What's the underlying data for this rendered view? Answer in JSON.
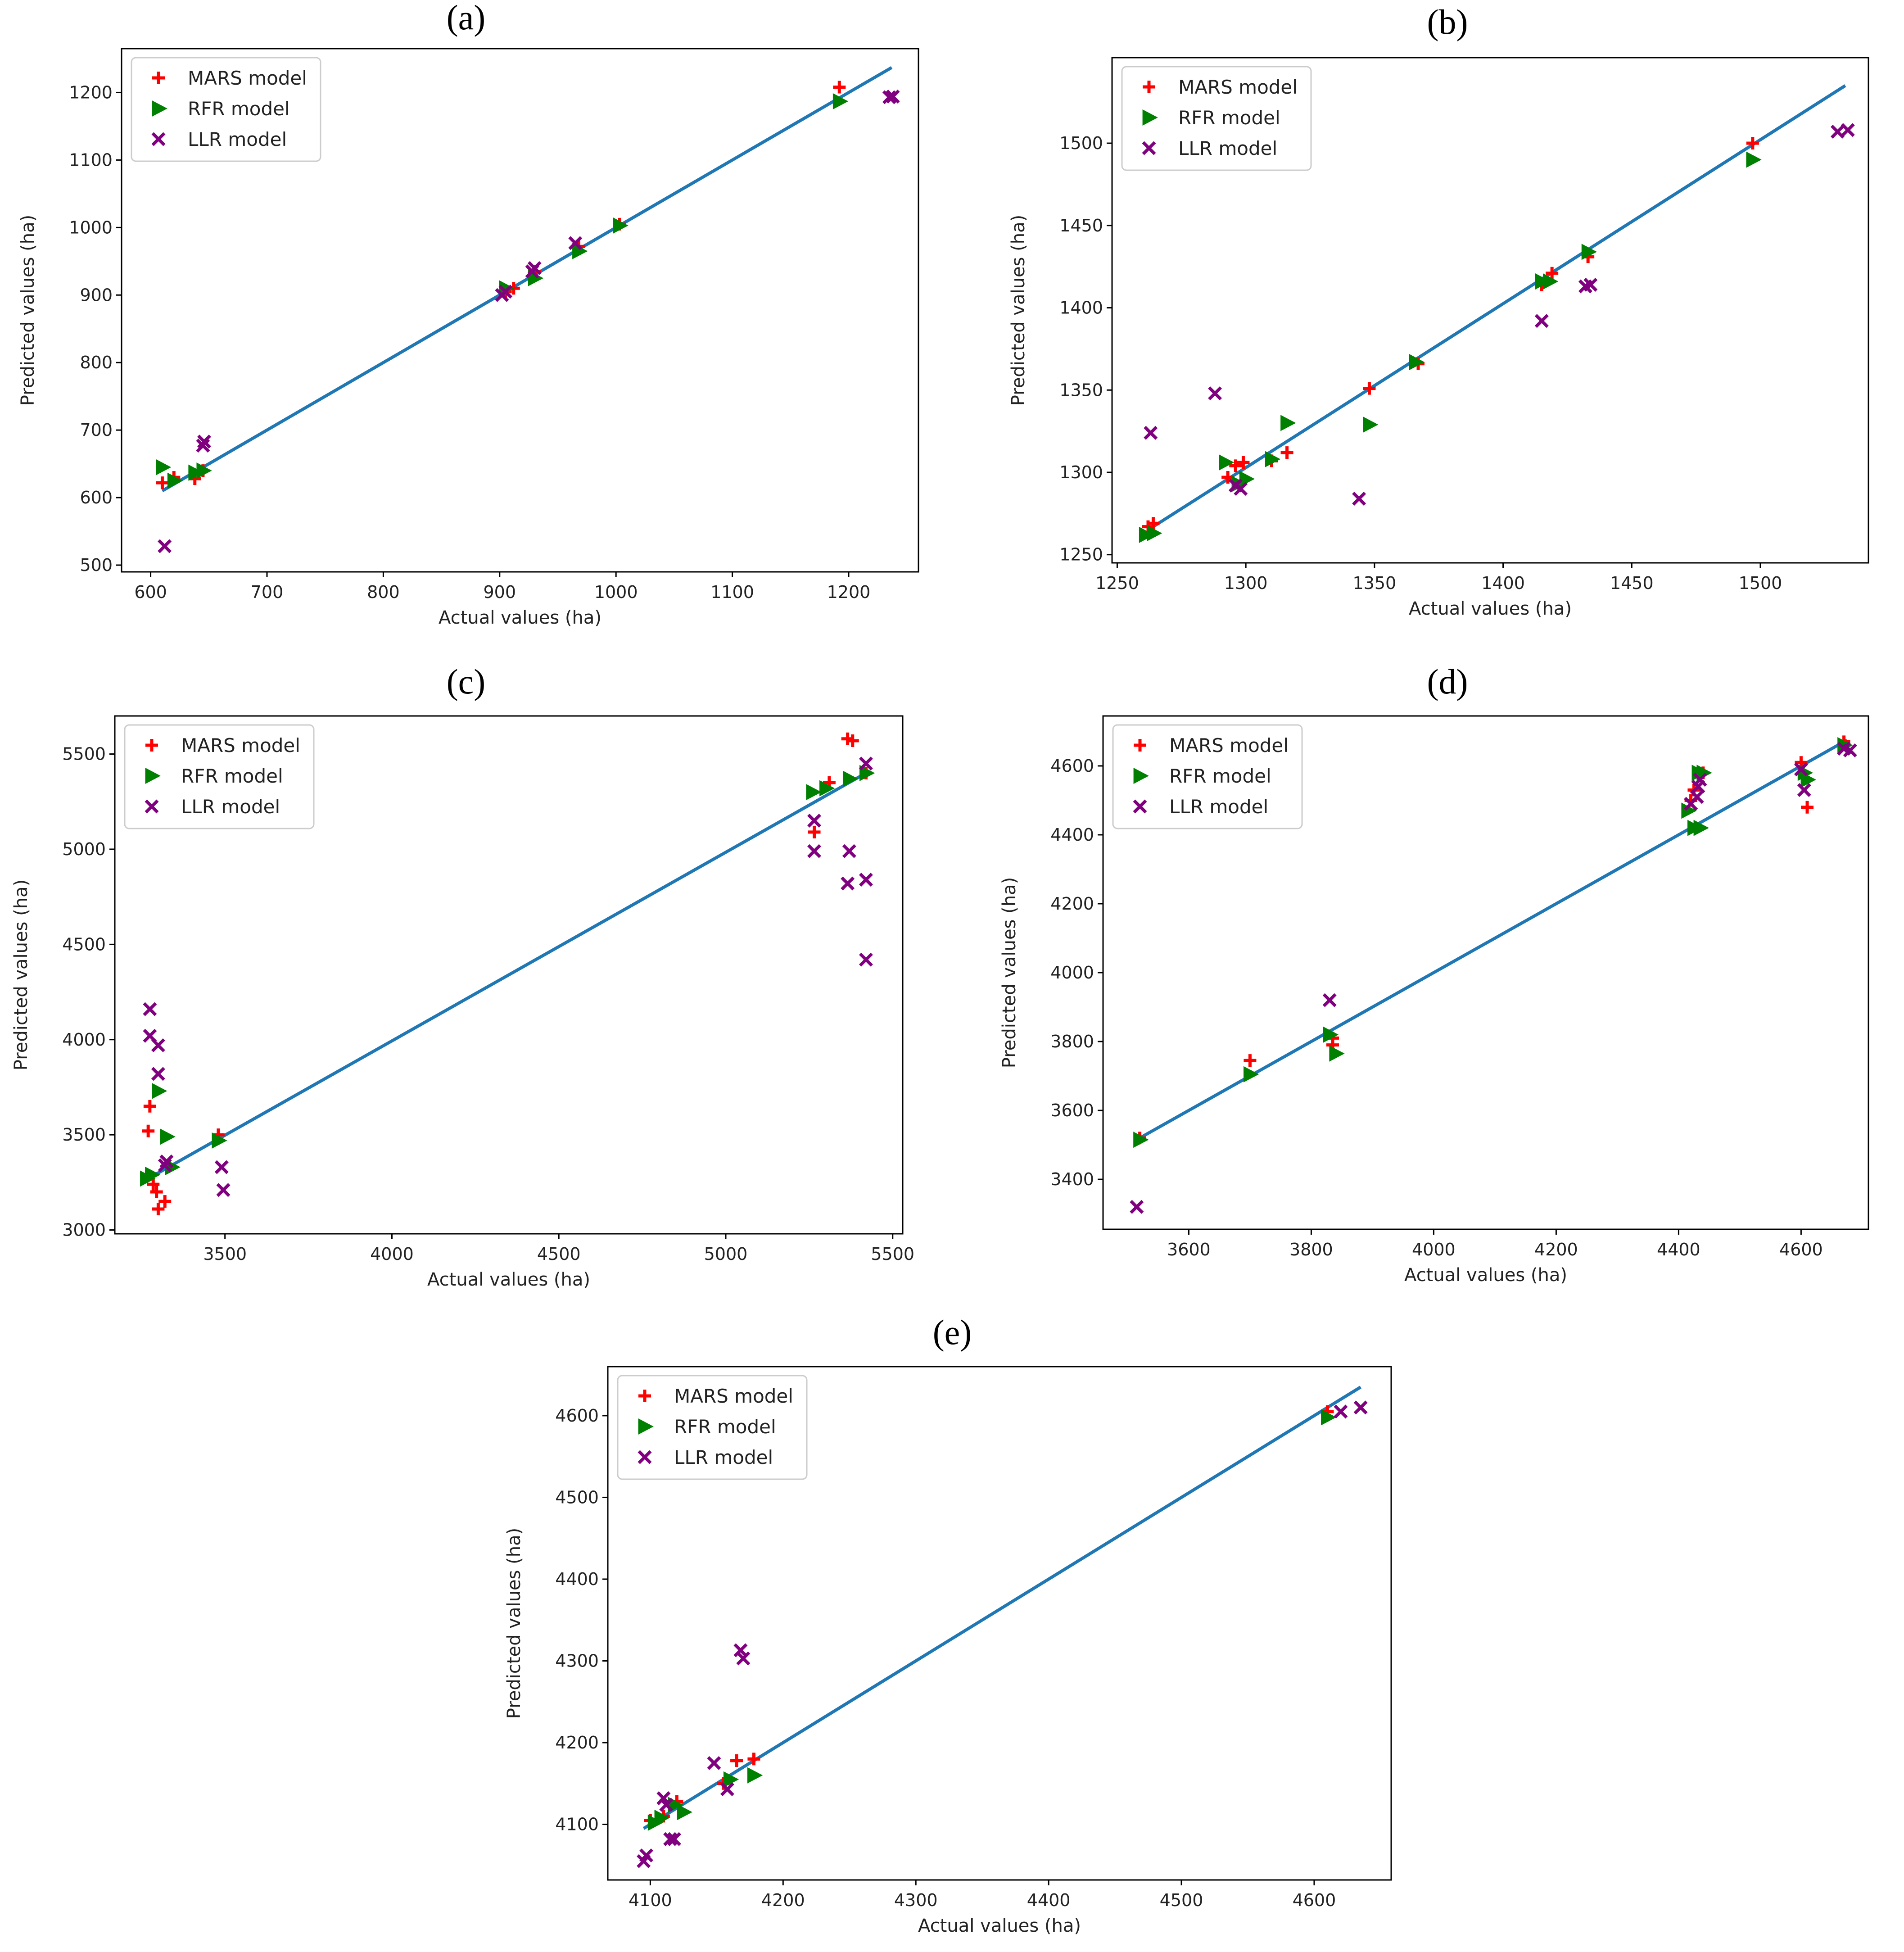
{
  "figure": {
    "panel_count": 5
  },
  "colors": {
    "mars": "#ff0000",
    "rfr": "#008000",
    "llr": "#800080",
    "fit_line": "#1f77b4",
    "axes": "#000000"
  },
  "chart_data": [
    {
      "panel": "(a)",
      "type": "scatter",
      "xlabel": "Actual values (ha)",
      "ylabel": "Predicted values (ha)",
      "xlim": [
        575,
        1260
      ],
      "ylim": [
        490,
        1265
      ],
      "xticks": [
        600,
        700,
        800,
        900,
        1000,
        1100,
        1200
      ],
      "yticks": [
        500,
        600,
        700,
        800,
        900,
        1000,
        1100,
        1200
      ],
      "legend_position": "top-left",
      "fit_line": [
        [
          610,
          610
        ],
        [
          1237,
          1237
        ]
      ],
      "series": [
        {
          "name": "MARS model",
          "marker": "plus",
          "color": "#ff0000",
          "points": [
            [
              610,
              622
            ],
            [
              620,
              630
            ],
            [
              638,
              628
            ],
            [
              645,
              640
            ],
            [
              905,
              905
            ],
            [
              912,
              910
            ],
            [
              930,
              935
            ],
            [
              968,
              972
            ],
            [
              1003,
              1005
            ],
            [
              1192,
              1208
            ]
          ]
        },
        {
          "name": "RFR model",
          "marker": "triangle-right",
          "color": "#008000",
          "points": [
            [
              610,
              645
            ],
            [
              620,
              625
            ],
            [
              638,
              637
            ],
            [
              645,
              640
            ],
            [
              905,
              910
            ],
            [
              930,
              925
            ],
            [
              968,
              965
            ],
            [
              1003,
              1003
            ],
            [
              1192,
              1187
            ]
          ]
        },
        {
          "name": "LLR model",
          "marker": "x",
          "color": "#800080",
          "points": [
            [
              612,
              528
            ],
            [
              645,
              677
            ],
            [
              646,
              683
            ],
            [
              902,
              900
            ],
            [
              905,
              905
            ],
            [
              928,
              935
            ],
            [
              930,
              940
            ],
            [
              965,
              977
            ],
            [
              1235,
              1193
            ],
            [
              1238,
              1194
            ]
          ]
        }
      ]
    },
    {
      "panel": "(b)",
      "type": "scatter",
      "xlabel": "Actual values (ha)",
      "ylabel": "Predicted values (ha)",
      "xlim": [
        1248,
        1542
      ],
      "ylim": [
        1245,
        1552
      ],
      "xticks": [
        1250,
        1300,
        1350,
        1400,
        1450,
        1500
      ],
      "yticks": [
        1250,
        1300,
        1350,
        1400,
        1450,
        1500
      ],
      "legend_position": "top-left",
      "fit_line": [
        [
          1262,
          1265
        ],
        [
          1533,
          1535
        ]
      ],
      "series": [
        {
          "name": "MARS model",
          "marker": "plus",
          "color": "#ff0000",
          "points": [
            [
              1262,
              1267
            ],
            [
              1264,
              1269
            ],
            [
              1293,
              1297
            ],
            [
              1296,
              1304
            ],
            [
              1299,
              1306
            ],
            [
              1310,
              1307
            ],
            [
              1316,
              1312
            ],
            [
              1348,
              1351
            ],
            [
              1367,
              1366
            ],
            [
              1415,
              1414
            ],
            [
              1419,
              1421
            ],
            [
              1433,
              1431
            ],
            [
              1497,
              1500
            ]
          ]
        },
        {
          "name": "RFR model",
          "marker": "triangle-right",
          "color": "#008000",
          "points": [
            [
              1261,
              1262
            ],
            [
              1264,
              1263
            ],
            [
              1292,
              1306
            ],
            [
              1297,
              1293
            ],
            [
              1300,
              1296
            ],
            [
              1310,
              1308
            ],
            [
              1316,
              1330
            ],
            [
              1348,
              1329
            ],
            [
              1366,
              1367
            ],
            [
              1415,
              1416
            ],
            [
              1418,
              1416
            ],
            [
              1433,
              1434
            ],
            [
              1497,
              1490
            ]
          ]
        },
        {
          "name": "LLR model",
          "marker": "x",
          "color": "#800080",
          "points": [
            [
              1263,
              1324
            ],
            [
              1288,
              1348
            ],
            [
              1296,
              1292
            ],
            [
              1298,
              1290
            ],
            [
              1344,
              1284
            ],
            [
              1415,
              1392
            ],
            [
              1432,
              1413
            ],
            [
              1434,
              1414
            ],
            [
              1530,
              1507
            ],
            [
              1534,
              1508
            ]
          ]
        }
      ]
    },
    {
      "panel": "(c)",
      "type": "scatter",
      "xlabel": "Actual values (ha)",
      "ylabel": "Predicted values (ha)",
      "xlim": [
        3170,
        5530
      ],
      "ylim": [
        2980,
        5700
      ],
      "xticks": [
        3500,
        4000,
        4500,
        5000,
        5500
      ],
      "yticks": [
        3000,
        3500,
        4000,
        4500,
        5000,
        5500
      ],
      "legend_position": "top-left",
      "fit_line": [
        [
          3265,
          3265
        ],
        [
          5430,
          5410
        ]
      ],
      "series": [
        {
          "name": "MARS model",
          "marker": "plus",
          "color": "#ff0000",
          "points": [
            [
              3270,
              3520
            ],
            [
              3275,
              3650
            ],
            [
              3285,
              3240
            ],
            [
              3295,
              3200
            ],
            [
              3300,
              3110
            ],
            [
              3320,
              3150
            ],
            [
              3480,
              3500
            ],
            [
              3265,
              3280
            ],
            [
              5265,
              5090
            ],
            [
              5310,
              5350
            ],
            [
              5365,
              5580
            ],
            [
              5380,
              5570
            ],
            [
              5420,
              5400
            ]
          ]
        },
        {
          "name": "RFR model",
          "marker": "triangle-right",
          "color": "#008000",
          "points": [
            [
              3265,
              3270
            ],
            [
              3280,
              3290
            ],
            [
              3300,
              3730
            ],
            [
              3325,
              3490
            ],
            [
              3340,
              3330
            ],
            [
              3480,
              3470
            ],
            [
              5260,
              5300
            ],
            [
              5300,
              5320
            ],
            [
              5370,
              5370
            ],
            [
              5420,
              5400
            ]
          ]
        },
        {
          "name": "LLR model",
          "marker": "x",
          "color": "#800080",
          "points": [
            [
              3275,
              4160
            ],
            [
              3275,
              4020
            ],
            [
              3300,
              3970
            ],
            [
              3300,
              3820
            ],
            [
              3325,
              3360
            ],
            [
              3320,
              3340
            ],
            [
              3490,
              3330
            ],
            [
              3495,
              3210
            ],
            [
              5265,
              5150
            ],
            [
              5265,
              4990
            ],
            [
              5370,
              4990
            ],
            [
              5365,
              4820
            ],
            [
              5420,
              5450
            ],
            [
              5420,
              4840
            ],
            [
              5420,
              4420
            ]
          ]
        }
      ]
    },
    {
      "panel": "(d)",
      "type": "scatter",
      "xlabel": "Actual values (ha)",
      "ylabel": "Predicted values (ha)",
      "xlim": [
        3460,
        4710
      ],
      "ylim": [
        3255,
        4745
      ],
      "xticks": [
        3600,
        3800,
        4000,
        4200,
        4400,
        4600
      ],
      "yticks": [
        3400,
        3600,
        3800,
        4000,
        4200,
        4400,
        4600
      ],
      "legend_position": "top-left",
      "fit_line": [
        [
          3515,
          3515
        ],
        [
          4675,
          4675
        ]
      ],
      "series": [
        {
          "name": "MARS model",
          "marker": "plus",
          "color": "#ff0000",
          "points": [
            [
              3520,
              3520
            ],
            [
              3700,
              3745
            ],
            [
              3835,
              3790
            ],
            [
              3835,
              3810
            ],
            [
              4420,
              4500
            ],
            [
              4425,
              4530
            ],
            [
              4440,
              4580
            ],
            [
              4600,
              4610
            ],
            [
              4610,
              4480
            ],
            [
              4670,
              4670
            ]
          ]
        },
        {
          "name": "RFR model",
          "marker": "triangle-right",
          "color": "#008000",
          "points": [
            [
              3520,
              3515
            ],
            [
              3700,
              3705
            ],
            [
              3830,
              3820
            ],
            [
              3840,
              3765
            ],
            [
              4415,
              4470
            ],
            [
              4425,
              4420
            ],
            [
              4435,
              4420
            ],
            [
              4432,
              4580
            ],
            [
              4440,
              4580
            ],
            [
              4605,
              4580
            ],
            [
              4610,
              4560
            ],
            [
              4670,
              4660
            ]
          ]
        },
        {
          "name": "LLR model",
          "marker": "x",
          "color": "#800080",
          "points": [
            [
              3515,
              3320
            ],
            [
              3830,
              3920
            ],
            [
              4420,
              4490
            ],
            [
              4430,
              4510
            ],
            [
              4432,
              4540
            ],
            [
              4435,
              4560
            ],
            [
              4600,
              4590
            ],
            [
              4605,
              4530
            ],
            [
              4670,
              4650
            ],
            [
              4680,
              4645
            ]
          ]
        }
      ]
    },
    {
      "panel": "(e)",
      "type": "scatter",
      "xlabel": "Actual values (ha)",
      "ylabel": "Predicted values (ha)",
      "xlim": [
        4068,
        4658
      ],
      "ylim": [
        4032,
        4660
      ],
      "xticks": [
        4100,
        4200,
        4300,
        4400,
        4500,
        4600
      ],
      "yticks": [
        4100,
        4200,
        4300,
        4400,
        4500,
        4600
      ],
      "legend_position": "top-left",
      "fit_line": [
        [
          4095,
          4095
        ],
        [
          4635,
          4635
        ]
      ],
      "series": [
        {
          "name": "MARS model",
          "marker": "plus",
          "color": "#ff0000",
          "points": [
            [
              4100,
              4105
            ],
            [
              4110,
              4110
            ],
            [
              4120,
              4128
            ],
            [
              4155,
              4150
            ],
            [
              4165,
              4178
            ],
            [
              4178,
              4180
            ],
            [
              4610,
              4605
            ]
          ]
        },
        {
          "name": "RFR model",
          "marker": "triangle-right",
          "color": "#008000",
          "points": [
            [
              4103,
              4102
            ],
            [
              4108,
              4108
            ],
            [
              4118,
              4124
            ],
            [
              4125,
              4115
            ],
            [
              4160,
              4155
            ],
            [
              4178,
              4160
            ],
            [
              4610,
              4598
            ]
          ]
        },
        {
          "name": "LLR model",
          "marker": "x",
          "color": "#800080",
          "points": [
            [
              4095,
              4055
            ],
            [
              4097,
              4062
            ],
            [
              4110,
              4132
            ],
            [
              4112,
              4124
            ],
            [
              4115,
              4082
            ],
            [
              4118,
              4082
            ],
            [
              4148,
              4175
            ],
            [
              4158,
              4143
            ],
            [
              4168,
              4313
            ],
            [
              4170,
              4303
            ],
            [
              4620,
              4605
            ],
            [
              4635,
              4610
            ]
          ]
        }
      ]
    }
  ]
}
